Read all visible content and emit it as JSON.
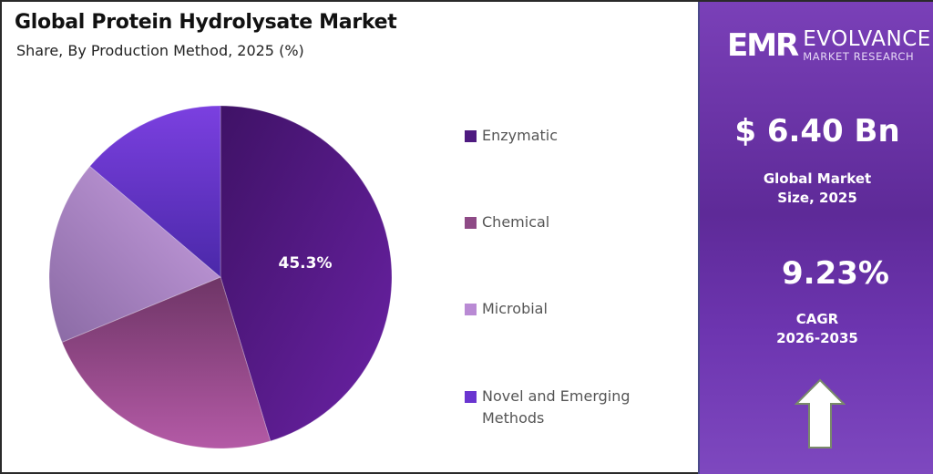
{
  "header": {
    "title": "Global Protein Hydrolysate Market",
    "subtitle": "Share, By Production Method, 2025 (%)"
  },
  "pie_label": "45.3%",
  "legend": [
    {
      "label": "Enzymatic",
      "color": "#4e1a80"
    },
    {
      "label": "Chemical",
      "color": "#8e4a86"
    },
    {
      "label": "Microbial",
      "color": "#b98ad4"
    },
    {
      "label": "Novel and Emerging Methods",
      "line1": "Novel and Emerging",
      "line2": "Methods",
      "color": "#6a35d0"
    }
  ],
  "panel": {
    "logo_mark": "EMR",
    "logo_name": "EVOLVANCE",
    "logo_sub": "MARKET RESEARCH",
    "market_size_value": "$ 6.40 Bn",
    "market_size_label_1": "Global Market",
    "market_size_label_2": "Size, 2025",
    "cagr_value": "9.23%",
    "cagr_label_1": "CAGR",
    "cagr_label_2": "2026-2035",
    "icon": "up-arrow-icon"
  },
  "chart_data": {
    "type": "pie",
    "title": "Global Protein Hydrolysate Market",
    "subtitle": "Share, By Production Method, 2025 (%)",
    "categories": [
      "Enzymatic",
      "Chemical",
      "Microbial",
      "Novel and Emerging Methods"
    ],
    "values": [
      45.3,
      23.5,
      17.4,
      13.8
    ],
    "data_labels": {
      "Enzymatic": "45.3%"
    },
    "colors": [
      "#4e1a80",
      "#8e4a86",
      "#b98ad4",
      "#6a35d0"
    ],
    "start_angle": "12 o'clock, clockwise",
    "legend_position": "right",
    "annotations": {
      "market_size_2025": "$ 6.40 Bn",
      "cagr_2026_2035": "9.23%"
    }
  }
}
